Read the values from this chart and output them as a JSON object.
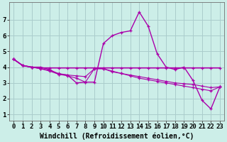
{
  "background_color": "#cceee8",
  "grid_color": "#aacccc",
  "line_color": "#aa00aa",
  "xlabel": "Windchill (Refroidissement éolien,°C)",
  "xlabel_fontsize": 7,
  "tick_fontsize": 6.5,
  "xlim": [
    -0.5,
    23.5
  ],
  "ylim": [
    0.6,
    8.1
  ],
  "xticks": [
    0,
    1,
    2,
    3,
    4,
    5,
    6,
    7,
    8,
    9,
    10,
    11,
    12,
    13,
    14,
    15,
    16,
    17,
    18,
    19,
    20,
    21,
    22,
    23
  ],
  "yticks": [
    1,
    2,
    3,
    4,
    5,
    6,
    7
  ],
  "series": [
    [
      4.5,
      4.1,
      4.0,
      4.0,
      3.85,
      3.55,
      3.5,
      3.0,
      3.05,
      3.05,
      5.5,
      6.0,
      6.2,
      6.3,
      7.5,
      6.6,
      4.85,
      4.0,
      3.85,
      4.0,
      3.15,
      1.9,
      1.35,
      2.75
    ],
    [
      4.5,
      4.1,
      4.0,
      3.95,
      3.95,
      3.95,
      3.95,
      3.95,
      3.95,
      3.95,
      3.95,
      3.95,
      3.95,
      3.95,
      3.95,
      3.95,
      3.95,
      3.95,
      3.95,
      3.95,
      3.95,
      3.95,
      3.95,
      3.95
    ],
    [
      4.5,
      4.1,
      4.0,
      3.9,
      3.75,
      3.55,
      3.45,
      3.3,
      3.05,
      3.9,
      3.9,
      3.7,
      3.6,
      3.45,
      3.3,
      3.2,
      3.1,
      3.0,
      2.9,
      2.8,
      2.7,
      2.6,
      2.5,
      2.75
    ],
    [
      4.5,
      4.1,
      4.0,
      3.9,
      3.8,
      3.6,
      3.5,
      3.45,
      3.4,
      3.9,
      3.9,
      3.75,
      3.6,
      3.5,
      3.4,
      3.3,
      3.2,
      3.1,
      3.0,
      2.95,
      2.9,
      2.8,
      2.7,
      2.75
    ]
  ]
}
